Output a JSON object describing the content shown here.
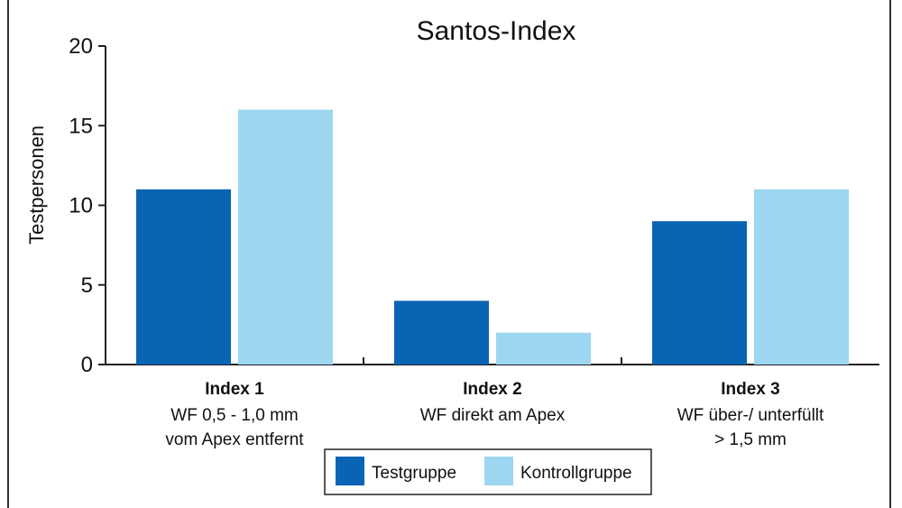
{
  "chart_data": {
    "type": "bar",
    "title": "Santos-Index",
    "ylabel": "Testpersonen",
    "xlabel": "",
    "ylim": [
      0,
      20
    ],
    "yticks": [
      0,
      5,
      10,
      15,
      20
    ],
    "categories": [
      {
        "name": "Index 1",
        "sub": [
          "WF 0,5 - 1,0 mm",
          "vom Apex entfernt"
        ]
      },
      {
        "name": "Index 2",
        "sub": [
          "WF direkt am Apex"
        ]
      },
      {
        "name": "Index 3",
        "sub": [
          "WF über-/ unterfüllt",
          "> 1,5 mm"
        ]
      }
    ],
    "series": [
      {
        "name": "Testgruppe",
        "color": "#0a64b4",
        "values": [
          11,
          4,
          9
        ]
      },
      {
        "name": "Kontrollgruppe",
        "color": "#9dd6f0",
        "values": [
          16,
          2,
          11
        ]
      }
    ],
    "legend_position": "bottom-center",
    "grid": false
  }
}
